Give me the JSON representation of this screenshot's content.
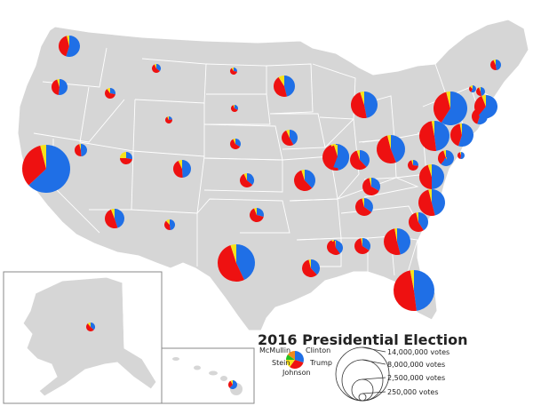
{
  "title": "2016 Presidential Election",
  "legend": {
    "candidates": [
      {
        "name": "Clinton",
        "color": "#1f6fe6"
      },
      {
        "name": "Trump",
        "color": "#ee1111"
      },
      {
        "name": "Johnson",
        "color": "#f7e21a"
      },
      {
        "name": "Stein",
        "color": "#23c21e"
      },
      {
        "name": "McMullin",
        "color": "#f08a1c"
      }
    ],
    "size_scale": [
      {
        "label": "14,000,000 votes",
        "votes": 14000000
      },
      {
        "label": "8,000,000 votes",
        "votes": 8000000
      },
      {
        "label": "2,500,000 votes",
        "votes": 2500000
      },
      {
        "label": "250,000 votes",
        "votes": 250000
      }
    ]
  },
  "colors": {
    "land": "#d6d6d6",
    "border": "#ffffff",
    "inset_frame": "#8a8a8a",
    "clinton": "#1f6fe6",
    "trump": "#ee1111",
    "third": "#f7e21a"
  },
  "states": [
    {
      "name": "WA",
      "shares": {
        "clinton": 0.55,
        "trump": 0.41,
        "third": 0.04
      }
    },
    {
      "name": "OR",
      "shares": {
        "clinton": 0.52,
        "trump": 0.43,
        "third": 0.05
      }
    },
    {
      "name": "CA",
      "shares": {
        "clinton": 0.63,
        "trump": 0.33,
        "third": 0.04
      }
    },
    {
      "name": "NV",
      "shares": {
        "clinton": 0.49,
        "trump": 0.47,
        "third": 0.04
      }
    },
    {
      "name": "ID",
      "shares": {
        "clinton": 0.28,
        "trump": 0.62,
        "third": 0.1
      }
    },
    {
      "name": "MT",
      "shares": {
        "clinton": 0.36,
        "trump": 0.57,
        "third": 0.07
      }
    },
    {
      "name": "WY",
      "shares": {
        "clinton": 0.23,
        "trump": 0.7,
        "third": 0.07
      }
    },
    {
      "name": "UT",
      "shares": {
        "clinton": 0.28,
        "trump": 0.47,
        "third": 0.25
      }
    },
    {
      "name": "CO",
      "shares": {
        "clinton": 0.49,
        "trump": 0.44,
        "third": 0.07
      }
    },
    {
      "name": "AZ",
      "shares": {
        "clinton": 0.45,
        "trump": 0.49,
        "third": 0.06
      }
    },
    {
      "name": "NM",
      "shares": {
        "clinton": 0.48,
        "trump": 0.4,
        "third": 0.12
      }
    },
    {
      "name": "ND",
      "shares": {
        "clinton": 0.28,
        "trump": 0.63,
        "third": 0.09
      }
    },
    {
      "name": "SD",
      "shares": {
        "clinton": 0.32,
        "trump": 0.62,
        "third": 0.06
      }
    },
    {
      "name": "NE",
      "shares": {
        "clinton": 0.34,
        "trump": 0.59,
        "third": 0.07
      }
    },
    {
      "name": "KS",
      "shares": {
        "clinton": 0.36,
        "trump": 0.57,
        "third": 0.07
      }
    },
    {
      "name": "OK",
      "shares": {
        "clinton": 0.29,
        "trump": 0.65,
        "third": 0.06
      }
    },
    {
      "name": "TX",
      "shares": {
        "clinton": 0.43,
        "trump": 0.52,
        "third": 0.05
      }
    },
    {
      "name": "MN",
      "shares": {
        "clinton": 0.46,
        "trump": 0.45,
        "third": 0.09
      }
    },
    {
      "name": "IA",
      "shares": {
        "clinton": 0.42,
        "trump": 0.51,
        "third": 0.07
      }
    },
    {
      "name": "MO",
      "shares": {
        "clinton": 0.38,
        "trump": 0.57,
        "third": 0.05
      }
    },
    {
      "name": "AR",
      "shares": {
        "clinton": 0.34,
        "trump": 0.61,
        "third": 0.05
      }
    },
    {
      "name": "LA",
      "shares": {
        "clinton": 0.38,
        "trump": 0.58,
        "third": 0.04
      }
    },
    {
      "name": "WI",
      "shares": {
        "clinton": 0.47,
        "trump": 0.47,
        "third": 0.06
      }
    },
    {
      "name": "IL",
      "shares": {
        "clinton": 0.56,
        "trump": 0.39,
        "third": 0.05
      }
    },
    {
      "name": "MI",
      "shares": {
        "clinton": 0.47,
        "trump": 0.48,
        "third": 0.05
      }
    },
    {
      "name": "IN",
      "shares": {
        "clinton": 0.38,
        "trump": 0.57,
        "third": 0.05
      }
    },
    {
      "name": "OH",
      "shares": {
        "clinton": 0.44,
        "trump": 0.52,
        "third": 0.04
      }
    },
    {
      "name": "KY",
      "shares": {
        "clinton": 0.33,
        "trump": 0.63,
        "third": 0.04
      }
    },
    {
      "name": "TN",
      "shares": {
        "clinton": 0.35,
        "trump": 0.61,
        "third": 0.04
      }
    },
    {
      "name": "MS",
      "shares": {
        "clinton": 0.4,
        "trump": 0.58,
        "third": 0.02
      }
    },
    {
      "name": "AL",
      "shares": {
        "clinton": 0.34,
        "trump": 0.63,
        "third": 0.03
      }
    },
    {
      "name": "GA",
      "shares": {
        "clinton": 0.46,
        "trump": 0.51,
        "third": 0.03
      }
    },
    {
      "name": "FL",
      "shares": {
        "clinton": 0.48,
        "trump": 0.49,
        "third": 0.03
      }
    },
    {
      "name": "SC",
      "shares": {
        "clinton": 0.41,
        "trump": 0.55,
        "third": 0.04
      }
    },
    {
      "name": "NC",
      "shares": {
        "clinton": 0.46,
        "trump": 0.5,
        "third": 0.04
      }
    },
    {
      "name": "VA",
      "shares": {
        "clinton": 0.5,
        "trump": 0.45,
        "third": 0.05
      }
    },
    {
      "name": "WV",
      "shares": {
        "clinton": 0.27,
        "trump": 0.68,
        "third": 0.05
      }
    },
    {
      "name": "PA",
      "shares": {
        "clinton": 0.48,
        "trump": 0.49,
        "third": 0.03
      }
    },
    {
      "name": "NY",
      "shares": {
        "clinton": 0.59,
        "trump": 0.37,
        "third": 0.04
      }
    },
    {
      "name": "NJ",
      "shares": {
        "clinton": 0.55,
        "trump": 0.42,
        "third": 0.03
      }
    },
    {
      "name": "MD",
      "shares": {
        "clinton": 0.61,
        "trump": 0.34,
        "third": 0.05
      }
    },
    {
      "name": "DE",
      "shares": {
        "clinton": 0.53,
        "trump": 0.42,
        "third": 0.05
      }
    },
    {
      "name": "DC",
      "shares": {
        "clinton": 0.91,
        "trump": 0.04,
        "third": 0.05
      }
    },
    {
      "name": "CT",
      "shares": {
        "clinton": 0.55,
        "trump": 0.41,
        "third": 0.04
      }
    },
    {
      "name": "RI",
      "shares": {
        "clinton": 0.55,
        "trump": 0.39,
        "third": 0.06
      }
    },
    {
      "name": "MA",
      "shares": {
        "clinton": 0.61,
        "trump": 0.33,
        "third": 0.06
      }
    },
    {
      "name": "VT",
      "shares": {
        "clinton": 0.57,
        "trump": 0.3,
        "third": 0.13
      }
    },
    {
      "name": "NH",
      "shares": {
        "clinton": 0.47,
        "trump": 0.47,
        "third": 0.06
      }
    },
    {
      "name": "ME",
      "shares": {
        "clinton": 0.48,
        "trump": 0.45,
        "third": 0.07
      }
    },
    {
      "name": "AK",
      "shares": {
        "clinton": 0.37,
        "trump": 0.52,
        "third": 0.11
      }
    },
    {
      "name": "HI",
      "shares": {
        "clinton": 0.62,
        "trump": 0.3,
        "third": 0.08
      }
    }
  ]
}
